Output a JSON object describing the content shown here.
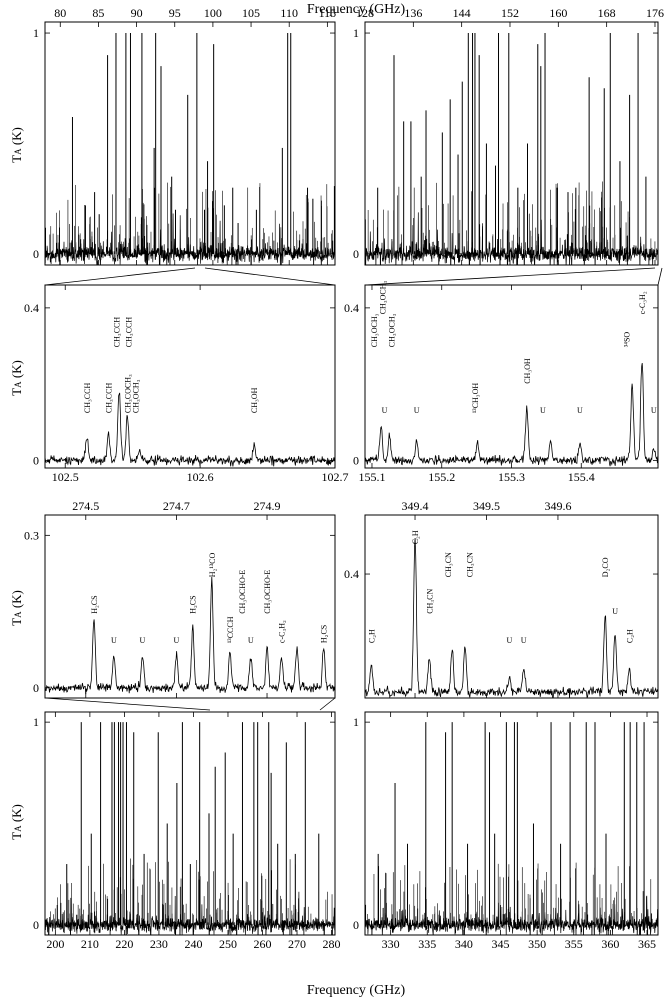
{
  "figure": {
    "xlabel_top": "Frequency (GHz)",
    "xlabel_bottom": "Frequency (GHz)",
    "ylabel": "T",
    "ylabel_sub": "A",
    "ylabel_unit": "(K)"
  },
  "chart_data": [
    {
      "id": "p1",
      "type": "line",
      "style": "survey",
      "xlim": [
        78,
        116
      ],
      "ylim": [
        -0.05,
        1.05
      ],
      "xticks": [
        80,
        85,
        90,
        95,
        100,
        105,
        110,
        115
      ],
      "xtick_side": "top",
      "yticks": [
        0,
        1
      ],
      "ylabel_shown": true,
      "series": [
        {
          "lines": [
            [
              86.2,
              0.9
            ],
            [
              87.3,
              1.0
            ],
            [
              88.6,
              1.0
            ],
            [
              89.2,
              1.0
            ],
            [
              90.7,
              1.0
            ],
            [
              92.3,
              0.48
            ],
            [
              92.5,
              1.0
            ],
            [
              93.2,
              0.85
            ],
            [
              94.6,
              0.35
            ],
            [
              96.7,
              0.72
            ],
            [
              97.9,
              1.0
            ],
            [
              98.9,
              0.2
            ],
            [
              100.1,
              0.95
            ],
            [
              101.5,
              0.22
            ],
            [
              102.6,
              0.3
            ],
            [
              105.7,
              0.2
            ],
            [
              109.1,
              0.48
            ],
            [
              109.8,
              1.0
            ],
            [
              110.2,
              1.0
            ],
            [
              112.4,
              0.3
            ],
            [
              113.1,
              0.25
            ],
            [
              79.9,
              0.12
            ],
            [
              81.6,
              0.62
            ],
            [
              83.3,
              0.22
            ],
            [
              84.5,
              0.28
            ],
            [
              85.1,
              0.18
            ],
            [
              99.3,
              0.42
            ],
            [
              95.1,
              0.2
            ],
            [
              103.3,
              0.14
            ]
          ]
        }
      ]
    },
    {
      "id": "p2",
      "type": "line",
      "style": "survey",
      "xlim": [
        128,
        176.5
      ],
      "ylim": [
        -0.05,
        1.05
      ],
      "xticks": [
        128,
        136,
        144,
        152,
        160,
        168,
        176
      ],
      "xtick_side": "top",
      "yticks": [
        0,
        1
      ],
      "ylabel_shown": false,
      "series": [
        {
          "lines": [
            [
              132.8,
              0.9
            ],
            [
              134.4,
              0.6
            ],
            [
              135.6,
              0.6
            ],
            [
              138.1,
              0.65
            ],
            [
              140.8,
              0.55
            ],
            [
              142.1,
              0.7
            ],
            [
              144.1,
              0.78
            ],
            [
              145.1,
              1.0
            ],
            [
              145.8,
              1.0
            ],
            [
              146.2,
              1.0
            ],
            [
              146.9,
              0.9
            ],
            [
              148.1,
              0.5
            ],
            [
              150.1,
              1.0
            ],
            [
              151.8,
              1.0
            ],
            [
              154.9,
              0.5
            ],
            [
              156.6,
              0.95
            ],
            [
              157.1,
              0.85
            ],
            [
              157.8,
              1.0
            ],
            [
              165.1,
              0.8
            ],
            [
              167.6,
              0.75
            ],
            [
              168.6,
              1.0
            ],
            [
              171.8,
              0.72
            ],
            [
              173.2,
              1.0
            ],
            [
              130.1,
              0.3
            ],
            [
              137.3,
              0.35
            ],
            [
              143.4,
              0.45
            ],
            [
              149.6,
              0.4
            ],
            [
              153.3,
              0.3
            ],
            [
              159.8,
              0.3
            ],
            [
              161.6,
              0.28
            ],
            [
              162.9,
              0.3
            ],
            [
              170.2,
              0.42
            ],
            [
              174.5,
              0.35
            ]
          ]
        }
      ]
    },
    {
      "id": "p3",
      "type": "line",
      "style": "zoom",
      "xlim": [
        102.485,
        102.7
      ],
      "ylim": [
        -0.02,
        0.46
      ],
      "xticks": [
        102.5,
        102.6,
        102.7
      ],
      "xticklabels": [
        "102.5",
        "102.6",
        "102.7"
      ],
      "xtick_side": "bottom",
      "yticks": [
        0,
        0.4
      ],
      "ylabel_shown": true,
      "series": [
        {
          "peaks": [
            [
              102.516,
              0.06
            ],
            [
              102.532,
              0.07
            ],
            [
              102.54,
              0.19
            ],
            [
              102.546,
              0.12
            ],
            [
              102.555,
              0.03
            ],
            [
              102.64,
              0.04
            ]
          ]
        }
      ],
      "annotations": [
        {
          "text": "CH₃CCH",
          "x": 102.516,
          "level": "low"
        },
        {
          "text": "CH₃CCH",
          "x": 102.532,
          "level": "low"
        },
        {
          "text": "CH₃CCH",
          "x": 102.538,
          "level": "high"
        },
        {
          "text": "CH₃CCH",
          "x": 102.547,
          "level": "high"
        },
        {
          "text": "CH₃COCH₃",
          "x": 102.546,
          "level": "low"
        },
        {
          "text": "CH₃OCH₃",
          "x": 102.552,
          "level": "low"
        },
        {
          "text": "CH₃OH",
          "x": 102.64,
          "level": "low"
        }
      ]
    },
    {
      "id": "p4",
      "type": "line",
      "style": "zoom",
      "xlim": [
        155.09,
        155.51
      ],
      "ylim": [
        -0.02,
        0.46
      ],
      "xticks": [
        155.1,
        155.2,
        155.3,
        155.4
      ],
      "xticklabels": [
        "155.1",
        "155.2",
        "155.3",
        "155.4"
      ],
      "xtick_side": "bottom",
      "yticks": [
        0,
        0.4
      ],
      "ylabel_shown": false,
      "series": [
        {
          "peaks": [
            [
              155.113,
              0.09
            ],
            [
              155.125,
              0.06
            ],
            [
              155.164,
              0.05
            ],
            [
              155.251,
              0.05
            ],
            [
              155.322,
              0.14
            ],
            [
              155.356,
              0.05
            ],
            [
              155.398,
              0.04
            ],
            [
              155.473,
              0.2
            ],
            [
              155.487,
              0.26
            ],
            [
              155.504,
              0.03
            ]
          ]
        }
      ],
      "annotations": [
        {
          "text": "CH₃OCH₃",
          "x": 155.103,
          "level": "high"
        },
        {
          "text": "CH₃OCH₃",
          "x": 155.115,
          "level": "top"
        },
        {
          "text": "CH₃OCH₃",
          "x": 155.128,
          "level": "high"
        },
        {
          "text": "U",
          "x": 155.118,
          "level": "low"
        },
        {
          "text": "U",
          "x": 155.164,
          "level": "low"
        },
        {
          "text": "¹³CH₃OH",
          "x": 155.248,
          "level": "low"
        },
        {
          "text": "CH₃OH",
          "x": 155.322,
          "level": "mid"
        },
        {
          "text": "U",
          "x": 155.345,
          "level": "low"
        },
        {
          "text": "U",
          "x": 155.398,
          "level": "low"
        },
        {
          "text": "³⁴SO",
          "x": 155.465,
          "level": "high"
        },
        {
          "text": "c-C₃H₂",
          "x": 155.487,
          "level": "top"
        },
        {
          "text": "U",
          "x": 155.504,
          "level": "low"
        }
      ]
    },
    {
      "id": "p5",
      "type": "line",
      "style": "zoom",
      "xlim": [
        274.41,
        275.05
      ],
      "ylim": [
        -0.02,
        0.34
      ],
      "xticks": [
        274.5,
        274.7,
        274.9
      ],
      "xticklabels": [
        "274.5",
        "274.7",
        "274.9"
      ],
      "xtick_side": "top",
      "yticks": [
        0,
        0.3
      ],
      "ylabel_shown": true,
      "series": [
        {
          "peaks": [
            [
              274.518,
              0.14
            ],
            [
              274.562,
              0.06
            ],
            [
              274.625,
              0.06
            ],
            [
              274.7,
              0.07
            ],
            [
              274.736,
              0.12
            ],
            [
              274.778,
              0.21
            ],
            [
              274.818,
              0.07
            ],
            [
              274.864,
              0.06
            ],
            [
              274.9,
              0.08
            ],
            [
              274.932,
              0.06
            ],
            [
              274.966,
              0.08
            ],
            [
              275.025,
              0.08
            ]
          ]
        }
      ],
      "annotations": [
        {
          "text": "H₂CS",
          "x": 274.518,
          "level": "mid"
        },
        {
          "text": "U",
          "x": 274.562,
          "level": "low"
        },
        {
          "text": "U",
          "x": 274.625,
          "level": "low"
        },
        {
          "text": "U",
          "x": 274.7,
          "level": "low"
        },
        {
          "text": "H₂CS",
          "x": 274.736,
          "level": "mid"
        },
        {
          "text": "H₂¹³CO",
          "x": 274.778,
          "level": "high"
        },
        {
          "text": "¹³CCCH",
          "x": 274.818,
          "level": "low"
        },
        {
          "text": "CH₃OCHO-E",
          "x": 274.845,
          "level": "mid"
        },
        {
          "text": "U",
          "x": 274.864,
          "level": "low"
        },
        {
          "text": "CH₃OCHO-E",
          "x": 274.9,
          "level": "mid"
        },
        {
          "text": "c-C₃H₂",
          "x": 274.932,
          "level": "low"
        },
        {
          "text": "H₂CS",
          "x": 275.025,
          "level": "low"
        }
      ]
    },
    {
      "id": "p6",
      "type": "line",
      "style": "zoom",
      "xlim": [
        349.33,
        349.74
      ],
      "ylim": [
        -0.02,
        0.6
      ],
      "xticks": [
        349.4,
        349.5,
        349.6
      ],
      "xticklabels": [
        "349.4",
        "349.5",
        "349.6"
      ],
      "xtick_side": "top",
      "yticks": [
        0.4
      ],
      "ylabel_shown": false,
      "series": [
        {
          "peaks": [
            [
              349.339,
              0.09
            ],
            [
              349.4,
              0.52
            ],
            [
              349.42,
              0.12
            ],
            [
              349.452,
              0.15
            ],
            [
              349.47,
              0.15
            ],
            [
              349.532,
              0.05
            ],
            [
              349.552,
              0.08
            ],
            [
              349.666,
              0.26
            ],
            [
              349.68,
              0.2
            ],
            [
              349.7,
              0.08
            ]
          ]
        }
      ],
      "annotations": [
        {
          "text": "C₂H",
          "x": 349.4,
          "level": "top"
        },
        {
          "text": "C₂H",
          "x": 349.339,
          "level": "low"
        },
        {
          "text": "CH₃CN",
          "x": 349.42,
          "level": "mid"
        },
        {
          "text": "CH₃CN",
          "x": 349.446,
          "level": "high"
        },
        {
          "text": "CH₃CN",
          "x": 349.476,
          "level": "high"
        },
        {
          "text": "U",
          "x": 349.532,
          "level": "low"
        },
        {
          "text": "U",
          "x": 349.552,
          "level": "low"
        },
        {
          "text": "D₂CO",
          "x": 349.666,
          "level": "high"
        },
        {
          "text": "U",
          "x": 349.68,
          "level": "mid"
        },
        {
          "text": "C₂H",
          "x": 349.7,
          "level": "low"
        }
      ]
    },
    {
      "id": "p7",
      "type": "line",
      "style": "survey",
      "xlim": [
        197,
        281
      ],
      "ylim": [
        -0.05,
        1.05
      ],
      "xticks": [
        200,
        210,
        220,
        230,
        240,
        250,
        260,
        270,
        280
      ],
      "xtick_side": "bottom",
      "yticks": [
        0,
        1
      ],
      "ylabel_shown": true,
      "series": [
        {
          "lines": [
            [
              207.5,
              1.0
            ],
            [
              213.1,
              1.0
            ],
            [
              216.4,
              1.0
            ],
            [
              217.1,
              1.0
            ],
            [
              218.3,
              1.0
            ],
            [
              218.9,
              1.0
            ],
            [
              219.6,
              1.0
            ],
            [
              220.6,
              1.0
            ],
            [
              222.7,
              0.95
            ],
            [
              229.8,
              0.95
            ],
            [
              235.2,
              0.7
            ],
            [
              236.8,
              1.0
            ],
            [
              241.8,
              1.0
            ],
            [
              246.3,
              0.78
            ],
            [
              249.2,
              0.85
            ],
            [
              254.2,
              1.0
            ],
            [
              257.5,
              1.0
            ],
            [
              258.6,
              1.0
            ],
            [
              261.8,
              1.0
            ],
            [
              262.5,
              0.75
            ],
            [
              266.9,
              0.9
            ],
            [
              272.4,
              1.0
            ],
            [
              203.3,
              0.3
            ],
            [
              210.4,
              0.45
            ],
            [
              225.7,
              0.35
            ],
            [
              232.4,
              0.5
            ],
            [
              239.1,
              0.3
            ],
            [
              244.5,
              0.55
            ],
            [
              251.5,
              0.45
            ],
            [
              264.4,
              0.4
            ],
            [
              269.5,
              0.35
            ],
            [
              276.3,
              0.45
            ]
          ]
        }
      ]
    },
    {
      "id": "p8",
      "type": "line",
      "style": "survey",
      "xlim": [
        326.5,
        366.5
      ],
      "ylim": [
        -0.05,
        1.05
      ],
      "xticks": [
        330,
        335,
        340,
        345,
        350,
        355,
        360,
        365
      ],
      "xtick_side": "bottom",
      "yticks": [
        0,
        1
      ],
      "ylabel_shown": false,
      "series": [
        {
          "lines": [
            [
              330.6,
              0.7
            ],
            [
              334.8,
              1.0
            ],
            [
              337.5,
              0.95
            ],
            [
              338.4,
              1.0
            ],
            [
              342.9,
              1.0
            ],
            [
              343.5,
              0.95
            ],
            [
              345.8,
              1.0
            ],
            [
              346.9,
              1.0
            ],
            [
              347.3,
              1.0
            ],
            [
              349.5,
              0.5
            ],
            [
              351.9,
              1.0
            ],
            [
              354.5,
              1.0
            ],
            [
              356.7,
              1.0
            ],
            [
              357.9,
              1.0
            ],
            [
              361.9,
              1.0
            ],
            [
              362.7,
              1.0
            ],
            [
              363.6,
              1.0
            ],
            [
              364.6,
              1.0
            ],
            [
              328.3,
              0.35
            ],
            [
              332.3,
              0.4
            ],
            [
              340.5,
              0.4
            ],
            [
              344.2,
              0.45
            ],
            [
              353.2,
              0.4
            ],
            [
              359.4,
              0.45
            ]
          ]
        }
      ]
    }
  ]
}
